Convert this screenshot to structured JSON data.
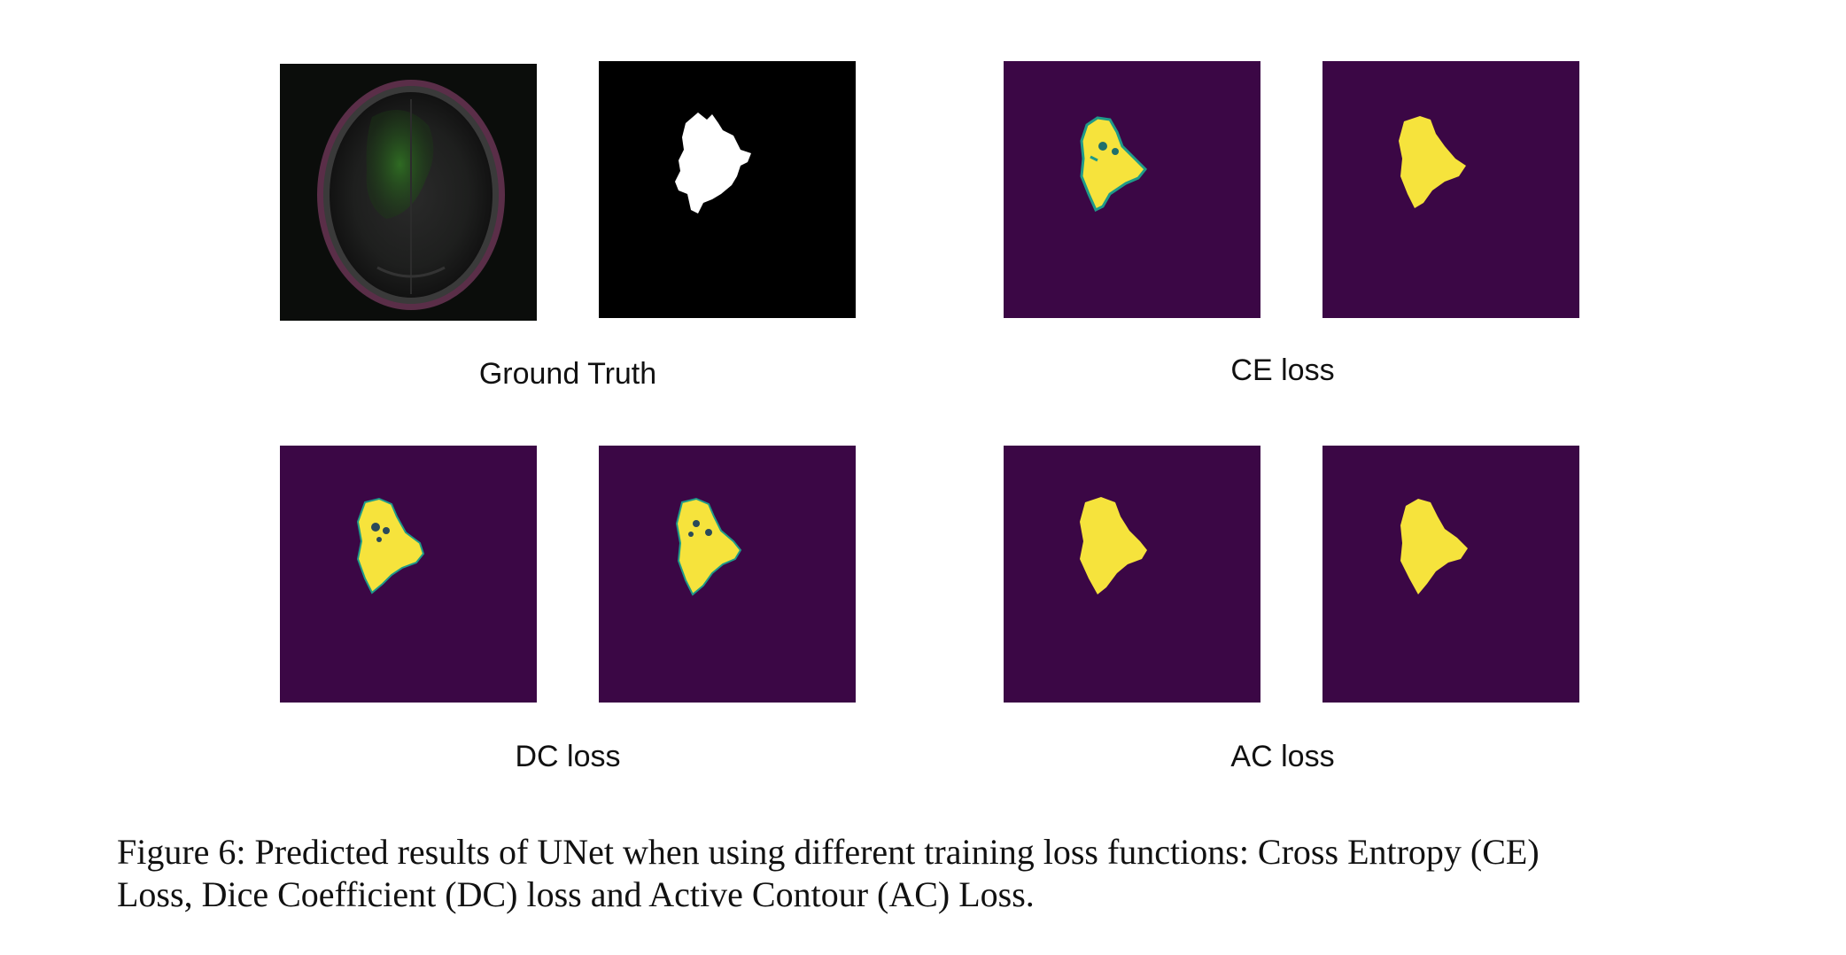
{
  "figure": {
    "groups": [
      {
        "id": "gt",
        "label": "Ground Truth"
      },
      {
        "id": "ce",
        "label": "CE loss"
      },
      {
        "id": "dc",
        "label": "DC loss"
      },
      {
        "id": "ac",
        "label": "AC loss"
      }
    ],
    "caption": {
      "line1": "Figure 6: Predicted results of UNet when using different training loss functions: Cross Entropy (CE)",
      "line2": "Loss, Dice Coefficient (DC) loss and Active Contour (AC) Loss."
    }
  },
  "colors": {
    "mask_background": "#000000",
    "mask_foreground": "#ffffff",
    "prediction_background": "#3b0745",
    "prediction_foreground": "#f6e33c",
    "prediction_edge": "#1f9a89"
  }
}
